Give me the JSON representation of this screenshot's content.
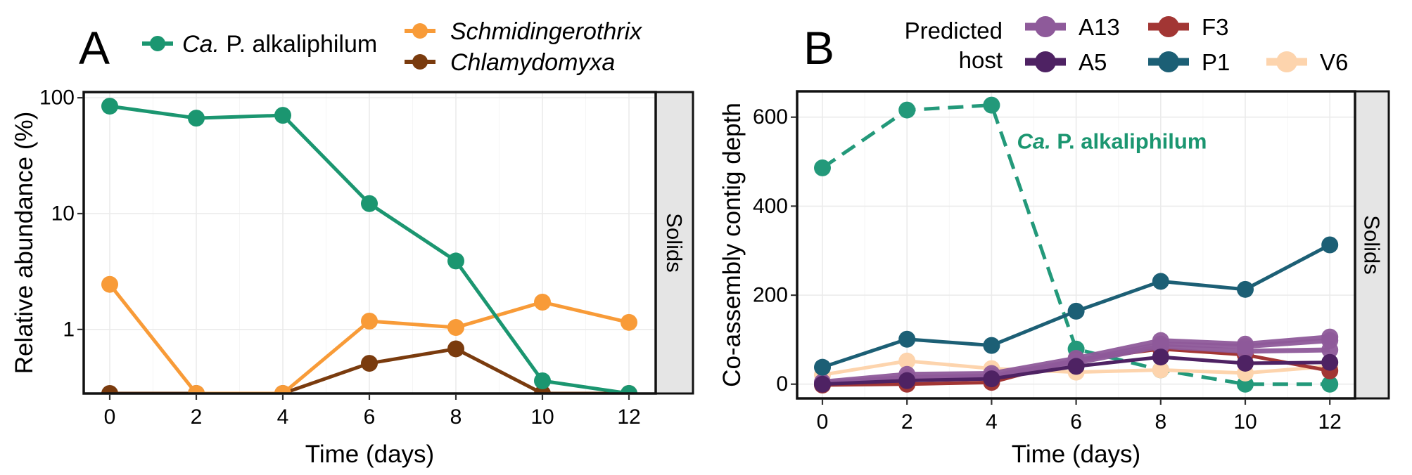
{
  "chart_data": [
    {
      "panel": "A",
      "type": "line",
      "title": "",
      "xlabel": "Time (days)",
      "ylabel": "Relative abundance (%)",
      "yscale": "log10",
      "ylim": [
        0.28,
        112
      ],
      "xlim": [
        -0.6,
        12.6
      ],
      "x": [
        0,
        2,
        4,
        6,
        8,
        10,
        12
      ],
      "x_ticks": [
        "0",
        "2",
        "4",
        "6",
        "8",
        "10",
        "12"
      ],
      "y_ticks": [
        {
          "value": 1,
          "label": "1"
        },
        {
          "value": 10,
          "label": "10"
        },
        {
          "value": 100,
          "label": "100"
        }
      ],
      "grid": true,
      "facet_strip": "Solids",
      "legend": {
        "position": "top",
        "title": ""
      },
      "series": [
        {
          "name": "Ca. P. alkaliphilum",
          "name_italic_part": "Ca.",
          "name_rest": " P. alkaliphilum",
          "color": "#1b9670",
          "linestyle": "solid",
          "values": [
            84.6,
            66.7,
            70.5,
            12.2,
            3.9,
            0.36,
            0.28
          ]
        },
        {
          "name": "Schmidingerothrix",
          "italic": true,
          "color": "#f89b38",
          "linestyle": "solid",
          "values": [
            2.45,
            0.28,
            0.28,
            1.18,
            1.04,
            1.72,
            1.15
          ]
        },
        {
          "name": "Chlamydomyxa",
          "italic": true,
          "color": "#7a3b0e",
          "linestyle": "solid",
          "values": [
            0.28,
            0.28,
            0.28,
            0.51,
            0.68,
            0.28,
            0.28
          ]
        }
      ]
    },
    {
      "panel": "B",
      "type": "line",
      "title": "",
      "xlabel": "Time (days)",
      "ylabel": "Co-assembly contig depth",
      "yscale": "linear",
      "ylim": [
        -32,
        658
      ],
      "xlim": [
        -0.6,
        12.6
      ],
      "x": [
        0,
        2,
        4,
        6,
        8,
        10,
        12
      ],
      "x_ticks": [
        "0",
        "2",
        "4",
        "6",
        "8",
        "10",
        "12"
      ],
      "y_ticks": [
        {
          "value": 0,
          "label": "0"
        },
        {
          "value": 200,
          "label": "200"
        },
        {
          "value": 400,
          "label": "400"
        },
        {
          "value": 600,
          "label": "600"
        }
      ],
      "grid": true,
      "facet_strip": "Solids",
      "legend": {
        "position": "top",
        "title": "Predicted host",
        "title_lines": [
          "Predicted",
          "host"
        ]
      },
      "annotation": {
        "text_italic": "Ca.",
        "text_rest": " P. alkaliphilum",
        "color": "#1b9670",
        "x": 4.6,
        "y": 545
      },
      "host_series": [
        {
          "name": "Ca. P. alkaliphilum",
          "in_legend": false,
          "color": "#23997a",
          "linestyle": "dashed",
          "values": [
            486,
            616,
            627,
            79,
            32,
            0,
            0
          ]
        },
        {
          "name": "V6",
          "color": "#fdd4ad",
          "linestyle": "solid",
          "values": [
            21,
            52,
            35,
            27,
            32,
            25,
            40
          ]
        },
        {
          "name": "F3",
          "color": "#a23634",
          "linestyle": "solid",
          "values": [
            -2,
            0,
            4,
            55,
            79,
            66,
            30
          ]
        },
        {
          "name": "A13",
          "color": "#8e5a9a",
          "linestyle": "solid",
          "values": [
            5,
            22,
            24,
            58,
            98,
            90,
            106
          ]
        },
        {
          "name": "A13",
          "color": "#8e5a9a",
          "linestyle": "solid",
          "values": [
            3,
            15,
            18,
            52,
            90,
            85,
            98
          ]
        },
        {
          "name": "A13",
          "color": "#8e5a9a",
          "linestyle": "solid",
          "values": [
            2,
            10,
            14,
            48,
            85,
            74,
            77
          ]
        },
        {
          "name": "A5",
          "color": "#4e2263",
          "linestyle": "solid",
          "values": [
            0,
            8,
            12,
            40,
            61,
            47,
            49
          ]
        },
        {
          "name": "P1",
          "color": "#1c5f75",
          "linestyle": "solid",
          "values": [
            38,
            101,
            87,
            164,
            231,
            213,
            313
          ]
        }
      ],
      "legend_items": [
        {
          "name": "A13",
          "color": "#8e5a9a"
        },
        {
          "name": "F3",
          "color": "#a23634"
        },
        {
          "name": "A5",
          "color": "#4e2263"
        },
        {
          "name": "P1",
          "color": "#1c5f75"
        },
        {
          "name": "V6",
          "color": "#fdd4ad"
        }
      ]
    }
  ],
  "panel_labels": {
    "a": "A",
    "b": "B"
  }
}
